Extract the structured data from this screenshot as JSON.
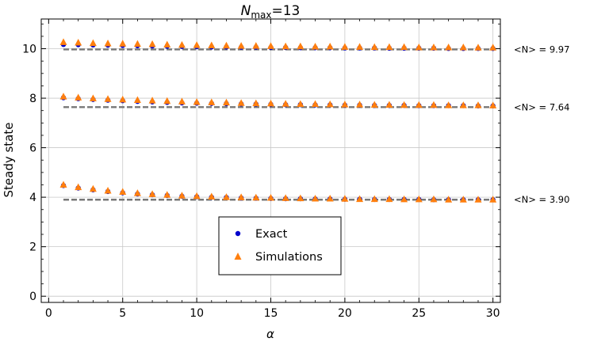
{
  "chart_data": {
    "type": "scatter",
    "title": {
      "base": "N",
      "sub": "max",
      "rest": "=13"
    },
    "xlabel": "α",
    "ylabel": "Steady state",
    "xlim": [
      -0.5,
      30.5
    ],
    "ylim": [
      -0.25,
      11.2
    ],
    "xticks": [
      0,
      5,
      10,
      15,
      20,
      25,
      30
    ],
    "yticks": [
      0,
      2,
      4,
      6,
      8,
      10
    ],
    "grid": true,
    "legend_position": "lower-center",
    "colors": {
      "exact": "#0000cc",
      "simulations": "#ff7f0e",
      "reference": "#777777"
    },
    "x": [
      1,
      2,
      3,
      4,
      5,
      6,
      7,
      8,
      9,
      10,
      11,
      12,
      13,
      14,
      15,
      16,
      17,
      18,
      19,
      20,
      21,
      22,
      23,
      24,
      25,
      26,
      27,
      28,
      29,
      30
    ],
    "series": [
      {
        "name": "Exact",
        "marker": "circle",
        "groups": [
          [
            10.17,
            10.16,
            10.15,
            10.14,
            10.13,
            10.12,
            10.11,
            10.1,
            10.09,
            10.08,
            10.07,
            10.07,
            10.06,
            10.06,
            10.05,
            10.05,
            10.04,
            10.04,
            10.04,
            10.03,
            10.03,
            10.03,
            10.02,
            10.02,
            10.02,
            10.02,
            10.01,
            10.01,
            10.01,
            10.01
          ],
          [
            8.02,
            7.98,
            7.95,
            7.92,
            7.9,
            7.87,
            7.85,
            7.83,
            7.81,
            7.8,
            7.79,
            7.78,
            7.77,
            7.76,
            7.75,
            7.74,
            7.74,
            7.73,
            7.73,
            7.72,
            7.72,
            7.71,
            7.71,
            7.71,
            7.7,
            7.7,
            7.7,
            7.7,
            7.69,
            7.69
          ],
          [
            4.47,
            4.37,
            4.3,
            4.23,
            4.18,
            4.13,
            4.1,
            4.07,
            4.04,
            4.02,
            4.0,
            3.99,
            3.97,
            3.96,
            3.95,
            3.94,
            3.94,
            3.93,
            3.93,
            3.92,
            3.92,
            3.91,
            3.91,
            3.91,
            3.91,
            3.9,
            3.9,
            3.9,
            3.9,
            3.9
          ]
        ]
      },
      {
        "name": "Simulations",
        "marker": "triangle",
        "groups": [
          [
            10.26,
            10.24,
            10.22,
            10.21,
            10.2,
            10.19,
            10.18,
            10.16,
            10.15,
            10.14,
            10.13,
            10.12,
            10.11,
            10.11,
            10.1,
            10.09,
            10.09,
            10.08,
            10.08,
            10.07,
            10.07,
            10.06,
            10.06,
            10.06,
            10.05,
            10.05,
            10.05,
            10.05,
            10.04,
            10.04
          ],
          [
            8.06,
            8.02,
            7.99,
            7.96,
            7.94,
            7.92,
            7.9,
            7.88,
            7.86,
            7.84,
            7.83,
            7.82,
            7.8,
            7.79,
            7.78,
            7.77,
            7.76,
            7.76,
            7.75,
            7.74,
            7.74,
            7.73,
            7.73,
            7.72,
            7.72,
            7.72,
            7.71,
            7.71,
            7.71,
            7.7
          ],
          [
            4.5,
            4.4,
            4.33,
            4.26,
            4.21,
            4.16,
            4.12,
            4.09,
            4.06,
            4.04,
            4.02,
            4.0,
            3.99,
            3.98,
            3.97,
            3.96,
            3.95,
            3.94,
            3.94,
            3.93,
            3.92,
            3.92,
            3.92,
            3.91,
            3.91,
            3.91,
            3.9,
            3.9,
            3.9,
            3.9
          ]
        ]
      }
    ],
    "reference_lines": [
      {
        "y": 9.97,
        "label": "<N> = 9.97"
      },
      {
        "y": 7.64,
        "label": "<N> = 7.64"
      },
      {
        "y": 3.9,
        "label": "<N> = 3.90"
      }
    ]
  }
}
